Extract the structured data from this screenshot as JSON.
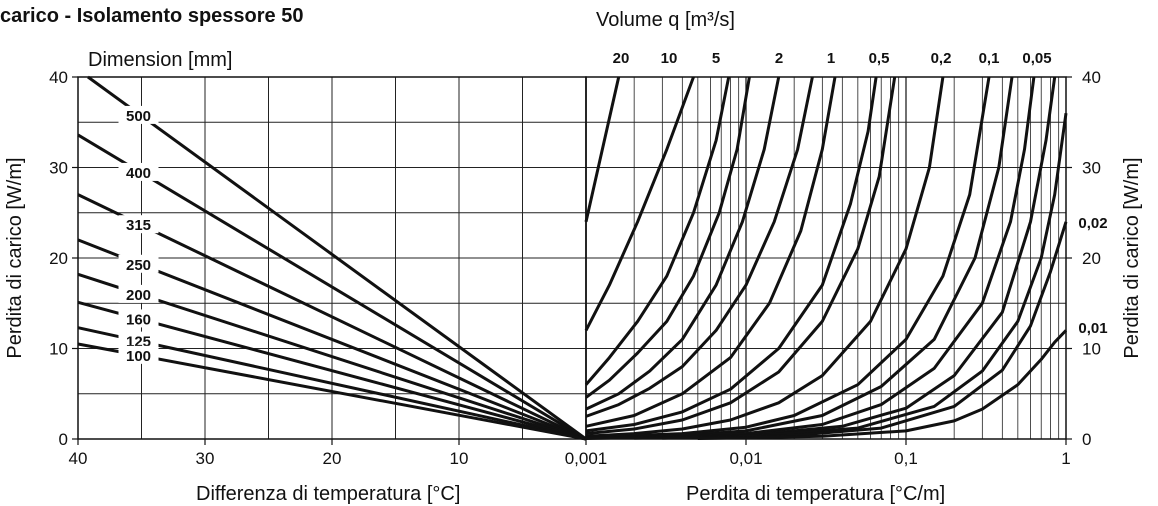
{
  "chart_data": {
    "type": "line",
    "title": "carico - Isolamento spessore 50",
    "left_panel": {
      "top_label": "Dimension [mm]",
      "xlabel": "Differenza di temperatura [°C]",
      "ylabel": "Perdita di carico [W/m]",
      "xlim": [
        40,
        0
      ],
      "ylim": [
        0,
        40
      ],
      "x_ticks": [
        "40",
        "30",
        "20",
        "10"
      ],
      "y_ticks": [
        "0",
        "10",
        "20",
        "30",
        "40"
      ],
      "grid": true,
      "series": [
        {
          "name": "500",
          "values": [
            {
              "x": 40,
              "y": 40.8
            },
            {
              "x": 0,
              "y": 0
            }
          ]
        },
        {
          "name": "400",
          "values": [
            {
              "x": 40,
              "y": 33.6
            },
            {
              "x": 0,
              "y": 0
            }
          ]
        },
        {
          "name": "315",
          "values": [
            {
              "x": 40,
              "y": 27.0
            },
            {
              "x": 0,
              "y": 0
            }
          ]
        },
        {
          "name": "250",
          "values": [
            {
              "x": 40,
              "y": 22.0
            },
            {
              "x": 0,
              "y": 0
            }
          ]
        },
        {
          "name": "200",
          "values": [
            {
              "x": 40,
              "y": 18.2
            },
            {
              "x": 0,
              "y": 0
            }
          ]
        },
        {
          "name": "160",
          "values": [
            {
              "x": 40,
              "y": 15.1
            },
            {
              "x": 0,
              "y": 0
            }
          ]
        },
        {
          "name": "125",
          "values": [
            {
              "x": 40,
              "y": 12.3
            },
            {
              "x": 0,
              "y": 0
            }
          ]
        },
        {
          "name": "100",
          "values": [
            {
              "x": 40,
              "y": 10.5
            },
            {
              "x": 0,
              "y": 0
            }
          ]
        }
      ]
    },
    "right_panel": {
      "top_label": "Volume q [m³/s]",
      "xlabel": "Perdita di temperatura [°C/m]",
      "ylabel": "Perdita di carico [W/m]",
      "x_scale": "log",
      "xlim": [
        0.001,
        1
      ],
      "ylim": [
        0,
        40
      ],
      "x_ticks": [
        "0,001",
        "0,01",
        "0,1",
        "1"
      ],
      "y_ticks": [
        "0",
        "10",
        "20",
        "30",
        "40"
      ],
      "grid": true,
      "series": [
        {
          "name": "20",
          "values": [
            {
              "x": 0.001,
              "y": 24
            },
            {
              "x": 0.0016,
              "y": 40
            }
          ]
        },
        {
          "name": "20",
          "values": [
            {
              "x": 0.001,
              "y": 12
            },
            {
              "x": 0.0014,
              "y": 17
            },
            {
              "x": 0.0021,
              "y": 24
            },
            {
              "x": 0.0032,
              "y": 32
            },
            {
              "x": 0.0047,
              "y": 40
            }
          ]
        },
        {
          "name": "10",
          "values": [
            {
              "x": 0.001,
              "y": 6
            },
            {
              "x": 0.0014,
              "y": 9
            },
            {
              "x": 0.0021,
              "y": 13
            },
            {
              "x": 0.0032,
              "y": 18
            },
            {
              "x": 0.0047,
              "y": 25
            },
            {
              "x": 0.0065,
              "y": 33
            },
            {
              "x": 0.0078,
              "y": 40
            }
          ]
        },
        {
          "name": "5",
          "values": [
            {
              "x": 0.001,
              "y": 4.6
            },
            {
              "x": 0.0014,
              "y": 6.5
            },
            {
              "x": 0.0021,
              "y": 9.5
            },
            {
              "x": 0.0032,
              "y": 13
            },
            {
              "x": 0.0047,
              "y": 18
            },
            {
              "x": 0.0068,
              "y": 25
            },
            {
              "x": 0.0088,
              "y": 32
            },
            {
              "x": 0.0105,
              "y": 40
            }
          ]
        },
        {
          "name": "",
          "values": [
            {
              "x": 0.001,
              "y": 3.3
            },
            {
              "x": 0.0016,
              "y": 5
            },
            {
              "x": 0.0025,
              "y": 7.5
            },
            {
              "x": 0.004,
              "y": 11
            },
            {
              "x": 0.0065,
              "y": 17
            },
            {
              "x": 0.0095,
              "y": 24
            },
            {
              "x": 0.013,
              "y": 32
            },
            {
              "x": 0.016,
              "y": 40
            }
          ]
        },
        {
          "name": "2",
          "values": [
            {
              "x": 0.001,
              "y": 2.5
            },
            {
              "x": 0.0016,
              "y": 3.8
            },
            {
              "x": 0.0025,
              "y": 5.6
            },
            {
              "x": 0.004,
              "y": 8
            },
            {
              "x": 0.0065,
              "y": 12
            },
            {
              "x": 0.01,
              "y": 17
            },
            {
              "x": 0.015,
              "y": 24
            },
            {
              "x": 0.021,
              "y": 32
            },
            {
              "x": 0.026,
              "y": 40
            }
          ]
        },
        {
          "name": "1",
          "values": [
            {
              "x": 0.001,
              "y": 1.4
            },
            {
              "x": 0.002,
              "y": 2.6
            },
            {
              "x": 0.004,
              "y": 5
            },
            {
              "x": 0.008,
              "y": 9
            },
            {
              "x": 0.014,
              "y": 15
            },
            {
              "x": 0.022,
              "y": 23
            },
            {
              "x": 0.03,
              "y": 32
            },
            {
              "x": 0.036,
              "y": 40
            }
          ]
        },
        {
          "name": "0,5",
          "values": [
            {
              "x": 0.001,
              "y": 0.9
            },
            {
              "x": 0.002,
              "y": 1.6
            },
            {
              "x": 0.004,
              "y": 3
            },
            {
              "x": 0.008,
              "y": 5.5
            },
            {
              "x": 0.016,
              "y": 10
            },
            {
              "x": 0.03,
              "y": 17
            },
            {
              "x": 0.045,
              "y": 26
            },
            {
              "x": 0.058,
              "y": 34
            },
            {
              "x": 0.065,
              "y": 40
            }
          ]
        },
        {
          "name": "",
          "values": [
            {
              "x": 0.001,
              "y": 0.6
            },
            {
              "x": 0.002,
              "y": 1.1
            },
            {
              "x": 0.004,
              "y": 2.1
            },
            {
              "x": 0.008,
              "y": 4
            },
            {
              "x": 0.016,
              "y": 7.4
            },
            {
              "x": 0.03,
              "y": 13
            },
            {
              "x": 0.05,
              "y": 21
            },
            {
              "x": 0.068,
              "y": 29
            },
            {
              "x": 0.085,
              "y": 40
            }
          ]
        },
        {
          "name": "0,2",
          "values": [
            {
              "x": 0.001,
              "y": 0.3
            },
            {
              "x": 0.002,
              "y": 0.6
            },
            {
              "x": 0.004,
              "y": 1.1
            },
            {
              "x": 0.008,
              "y": 2.1
            },
            {
              "x": 0.016,
              "y": 4
            },
            {
              "x": 0.03,
              "y": 7
            },
            {
              "x": 0.06,
              "y": 13
            },
            {
              "x": 0.1,
              "y": 21
            },
            {
              "x": 0.14,
              "y": 30
            },
            {
              "x": 0.17,
              "y": 40
            }
          ]
        },
        {
          "name": "0,1",
          "values": [
            {
              "x": 0.001,
              "y": 0.2
            },
            {
              "x": 0.004,
              "y": 0.6
            },
            {
              "x": 0.01,
              "y": 1.3
            },
            {
              "x": 0.02,
              "y": 2.6
            },
            {
              "x": 0.05,
              "y": 6
            },
            {
              "x": 0.1,
              "y": 11
            },
            {
              "x": 0.17,
              "y": 18
            },
            {
              "x": 0.25,
              "y": 27
            },
            {
              "x": 0.33,
              "y": 40
            }
          ]
        },
        {
          "name": "",
          "values": [
            {
              "x": 0.001,
              "y": 0.1
            },
            {
              "x": 0.004,
              "y": 0.4
            },
            {
              "x": 0.01,
              "y": 0.9
            },
            {
              "x": 0.03,
              "y": 2.6
            },
            {
              "x": 0.07,
              "y": 5.8
            },
            {
              "x": 0.15,
              "y": 11
            },
            {
              "x": 0.27,
              "y": 20
            },
            {
              "x": 0.38,
              "y": 30
            },
            {
              "x": 0.46,
              "y": 40
            }
          ]
        },
        {
          "name": "0,05",
          "values": [
            {
              "x": 0.001,
              "y": 0.1
            },
            {
              "x": 0.01,
              "y": 0.6
            },
            {
              "x": 0.03,
              "y": 1.6
            },
            {
              "x": 0.07,
              "y": 3.8
            },
            {
              "x": 0.15,
              "y": 7.8
            },
            {
              "x": 0.3,
              "y": 15
            },
            {
              "x": 0.45,
              "y": 24
            },
            {
              "x": 0.55,
              "y": 32
            },
            {
              "x": 0.63,
              "y": 40
            }
          ]
        },
        {
          "name": "",
          "values": [
            {
              "x": 0.001,
              "y": 0.05
            },
            {
              "x": 0.01,
              "y": 0.4
            },
            {
              "x": 0.04,
              "y": 1.4
            },
            {
              "x": 0.1,
              "y": 3.4
            },
            {
              "x": 0.2,
              "y": 7
            },
            {
              "x": 0.4,
              "y": 14
            },
            {
              "x": 0.6,
              "y": 24
            },
            {
              "x": 0.75,
              "y": 33
            },
            {
              "x": 0.85,
              "y": 40
            }
          ]
        },
        {
          "name": "",
          "values": [
            {
              "x": 0.002,
              "y": 0.1
            },
            {
              "x": 0.01,
              "y": 0.3
            },
            {
              "x": 0.05,
              "y": 1.2
            },
            {
              "x": 0.15,
              "y": 3.6
            },
            {
              "x": 0.3,
              "y": 7.5
            },
            {
              "x": 0.5,
              "y": 13
            },
            {
              "x": 0.7,
              "y": 20
            },
            {
              "x": 0.85,
              "y": 27
            },
            {
              "x": 1,
              "y": 36
            }
          ]
        },
        {
          "name": "0,02",
          "values": [
            {
              "x": 0.003,
              "y": 0.1
            },
            {
              "x": 0.02,
              "y": 0.4
            },
            {
              "x": 0.07,
              "y": 1.2
            },
            {
              "x": 0.2,
              "y": 3.6
            },
            {
              "x": 0.4,
              "y": 7.6
            },
            {
              "x": 0.6,
              "y": 12.5
            },
            {
              "x": 0.8,
              "y": 18.5
            },
            {
              "x": 1,
              "y": 24
            }
          ]
        },
        {
          "name": "0,01",
          "values": [
            {
              "x": 0.005,
              "y": 0.05
            },
            {
              "x": 0.03,
              "y": 0.3
            },
            {
              "x": 0.1,
              "y": 0.9
            },
            {
              "x": 0.2,
              "y": 2
            },
            {
              "x": 0.3,
              "y": 3.3
            },
            {
              "x": 0.5,
              "y": 6
            },
            {
              "x": 0.7,
              "y": 8.8
            },
            {
              "x": 0.85,
              "y": 10.7
            },
            {
              "x": 1,
              "y": 12
            }
          ]
        }
      ],
      "top_series_labels": [
        "20",
        "10",
        "5",
        "2",
        "1",
        "0,5",
        "0,2",
        "0,1",
        "0,05"
      ],
      "side_series_labels": [
        "0,02",
        "0,01"
      ]
    },
    "center_tick": "0,001",
    "colors": {
      "line": "#111111",
      "grid": "#222222",
      "background": "#ffffff"
    }
  }
}
